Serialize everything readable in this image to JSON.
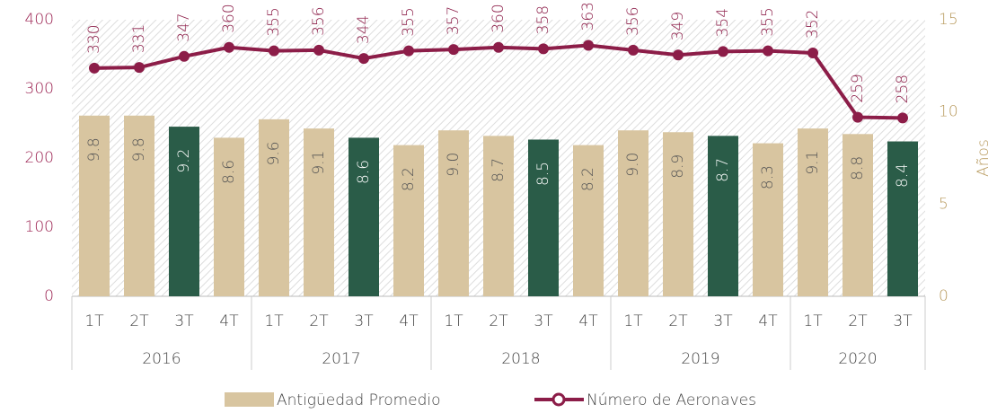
{
  "chart_data": {
    "type": "bar_line",
    "categories": [
      {
        "quarter": "1T",
        "year": "2016"
      },
      {
        "quarter": "2T",
        "year": "2016"
      },
      {
        "quarter": "3T",
        "year": "2016"
      },
      {
        "quarter": "4T",
        "year": "2016"
      },
      {
        "quarter": "1T",
        "year": "2017"
      },
      {
        "quarter": "2T",
        "year": "2017"
      },
      {
        "quarter": "3T",
        "year": "2017"
      },
      {
        "quarter": "4T",
        "year": "2017"
      },
      {
        "quarter": "1T",
        "year": "2018"
      },
      {
        "quarter": "2T",
        "year": "2018"
      },
      {
        "quarter": "3T",
        "year": "2018"
      },
      {
        "quarter": "4T",
        "year": "2018"
      },
      {
        "quarter": "1T",
        "year": "2019"
      },
      {
        "quarter": "2T",
        "year": "2019"
      },
      {
        "quarter": "3T",
        "year": "2019"
      },
      {
        "quarter": "4T",
        "year": "2019"
      },
      {
        "quarter": "1T",
        "year": "2020"
      },
      {
        "quarter": "2T",
        "year": "2020"
      },
      {
        "quarter": "3T",
        "year": "2020"
      }
    ],
    "series": [
      {
        "name": "Antigüedad Promedio",
        "kind": "bar",
        "axis": "y2",
        "color": "#d8c5a0",
        "colors": [
          "#d8c5a0",
          "#d8c5a0",
          "#2a5c48",
          "#d8c5a0",
          "#d8c5a0",
          "#d8c5a0",
          "#2a5c48",
          "#d8c5a0",
          "#d8c5a0",
          "#d8c5a0",
          "#2a5c48",
          "#d8c5a0",
          "#d8c5a0",
          "#d8c5a0",
          "#2a5c48",
          "#d8c5a0",
          "#d8c5a0",
          "#d8c5a0",
          "#2a5c48"
        ],
        "values": [
          9.8,
          9.8,
          9.2,
          8.6,
          9.6,
          9.1,
          8.6,
          8.2,
          9.0,
          8.7,
          8.5,
          8.2,
          9.0,
          8.9,
          8.7,
          8.3,
          9.1,
          8.8,
          8.4
        ],
        "value_labels": [
          "9.8",
          "9.8",
          "9.2",
          "8.6",
          "9.6",
          "9.1",
          "8.6",
          "8.2",
          "9.0",
          "8.7",
          "8.5",
          "8.2",
          "9.0",
          "8.9",
          "8.7",
          "8.3",
          "9.1",
          "8.8",
          "8.4"
        ]
      },
      {
        "name": "Número de Aeronaves",
        "kind": "line",
        "axis": "y",
        "color": "#8c1d48",
        "values": [
          330,
          331,
          347,
          360,
          355,
          356,
          344,
          355,
          357,
          360,
          358,
          363,
          356,
          349,
          354,
          355,
          352,
          259,
          258
        ]
      }
    ],
    "ylim": [
      0,
      400
    ],
    "yticks": [
      0,
      100,
      200,
      300,
      400
    ],
    "y2lim": [
      0,
      15
    ],
    "y2ticks": [
      0,
      5,
      10,
      15
    ],
    "y2label": "Años",
    "legend": "bottom"
  }
}
